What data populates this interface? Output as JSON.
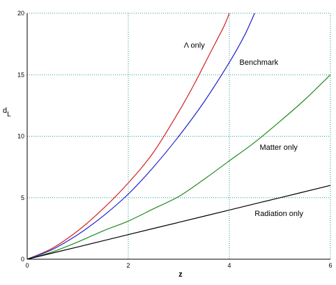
{
  "chart_data": {
    "type": "line",
    "title": "",
    "xlabel": "z",
    "ylabel": "d",
    "ylabel_sub": "L",
    "xlim": [
      0,
      6
    ],
    "ylim": [
      0,
      20
    ],
    "xticks": [
      0,
      2,
      4,
      6
    ],
    "yticks": [
      0,
      5,
      10,
      15,
      20
    ],
    "grid": true,
    "grid_style": "dotted",
    "grid_color": "#1f9b8f",
    "series": [
      {
        "name": "Λ only",
        "color": "#d42020",
        "x": [
          0,
          0.5,
          1,
          1.5,
          2,
          2.5,
          3,
          3.3,
          3.6,
          3.9,
          4.0
        ],
        "y": [
          0,
          0.9,
          2.3,
          4.1,
          6.2,
          8.7,
          12.0,
          14.2,
          16.6,
          19.0,
          20.0
        ]
      },
      {
        "name": "Benchmark",
        "color": "#2020cc",
        "x": [
          0,
          0.5,
          1,
          1.5,
          2,
          2.5,
          3,
          3.5,
          4.0,
          4.3,
          4.5
        ],
        "y": [
          0,
          0.8,
          2.0,
          3.5,
          5.3,
          7.5,
          10.0,
          12.8,
          16.0,
          18.2,
          20.0
        ]
      },
      {
        "name": "Matter only",
        "color": "#208a20",
        "x": [
          0,
          0.5,
          1,
          1.5,
          2,
          2.5,
          3,
          3.5,
          4,
          4.5,
          5,
          5.5,
          6
        ],
        "y": [
          0,
          0.6,
          1.4,
          2.3,
          3.1,
          4.1,
          5.1,
          6.5,
          8.0,
          9.5,
          11.2,
          13.0,
          15.0
        ]
      },
      {
        "name": "Radiation only",
        "color": "#000000",
        "x": [
          0,
          1,
          2,
          3,
          4,
          5,
          6
        ],
        "y": [
          0,
          1,
          2,
          3,
          4,
          5,
          6
        ]
      }
    ],
    "annotations": [
      {
        "text": "Λ only",
        "x": 3.1,
        "y": 17.2
      },
      {
        "text": "Benchmark",
        "x": 4.2,
        "y": 15.8
      },
      {
        "text": "Matter only",
        "x": 4.6,
        "y": 8.9
      },
      {
        "text": "Radiation only",
        "x": 4.5,
        "y": 3.5
      }
    ]
  }
}
